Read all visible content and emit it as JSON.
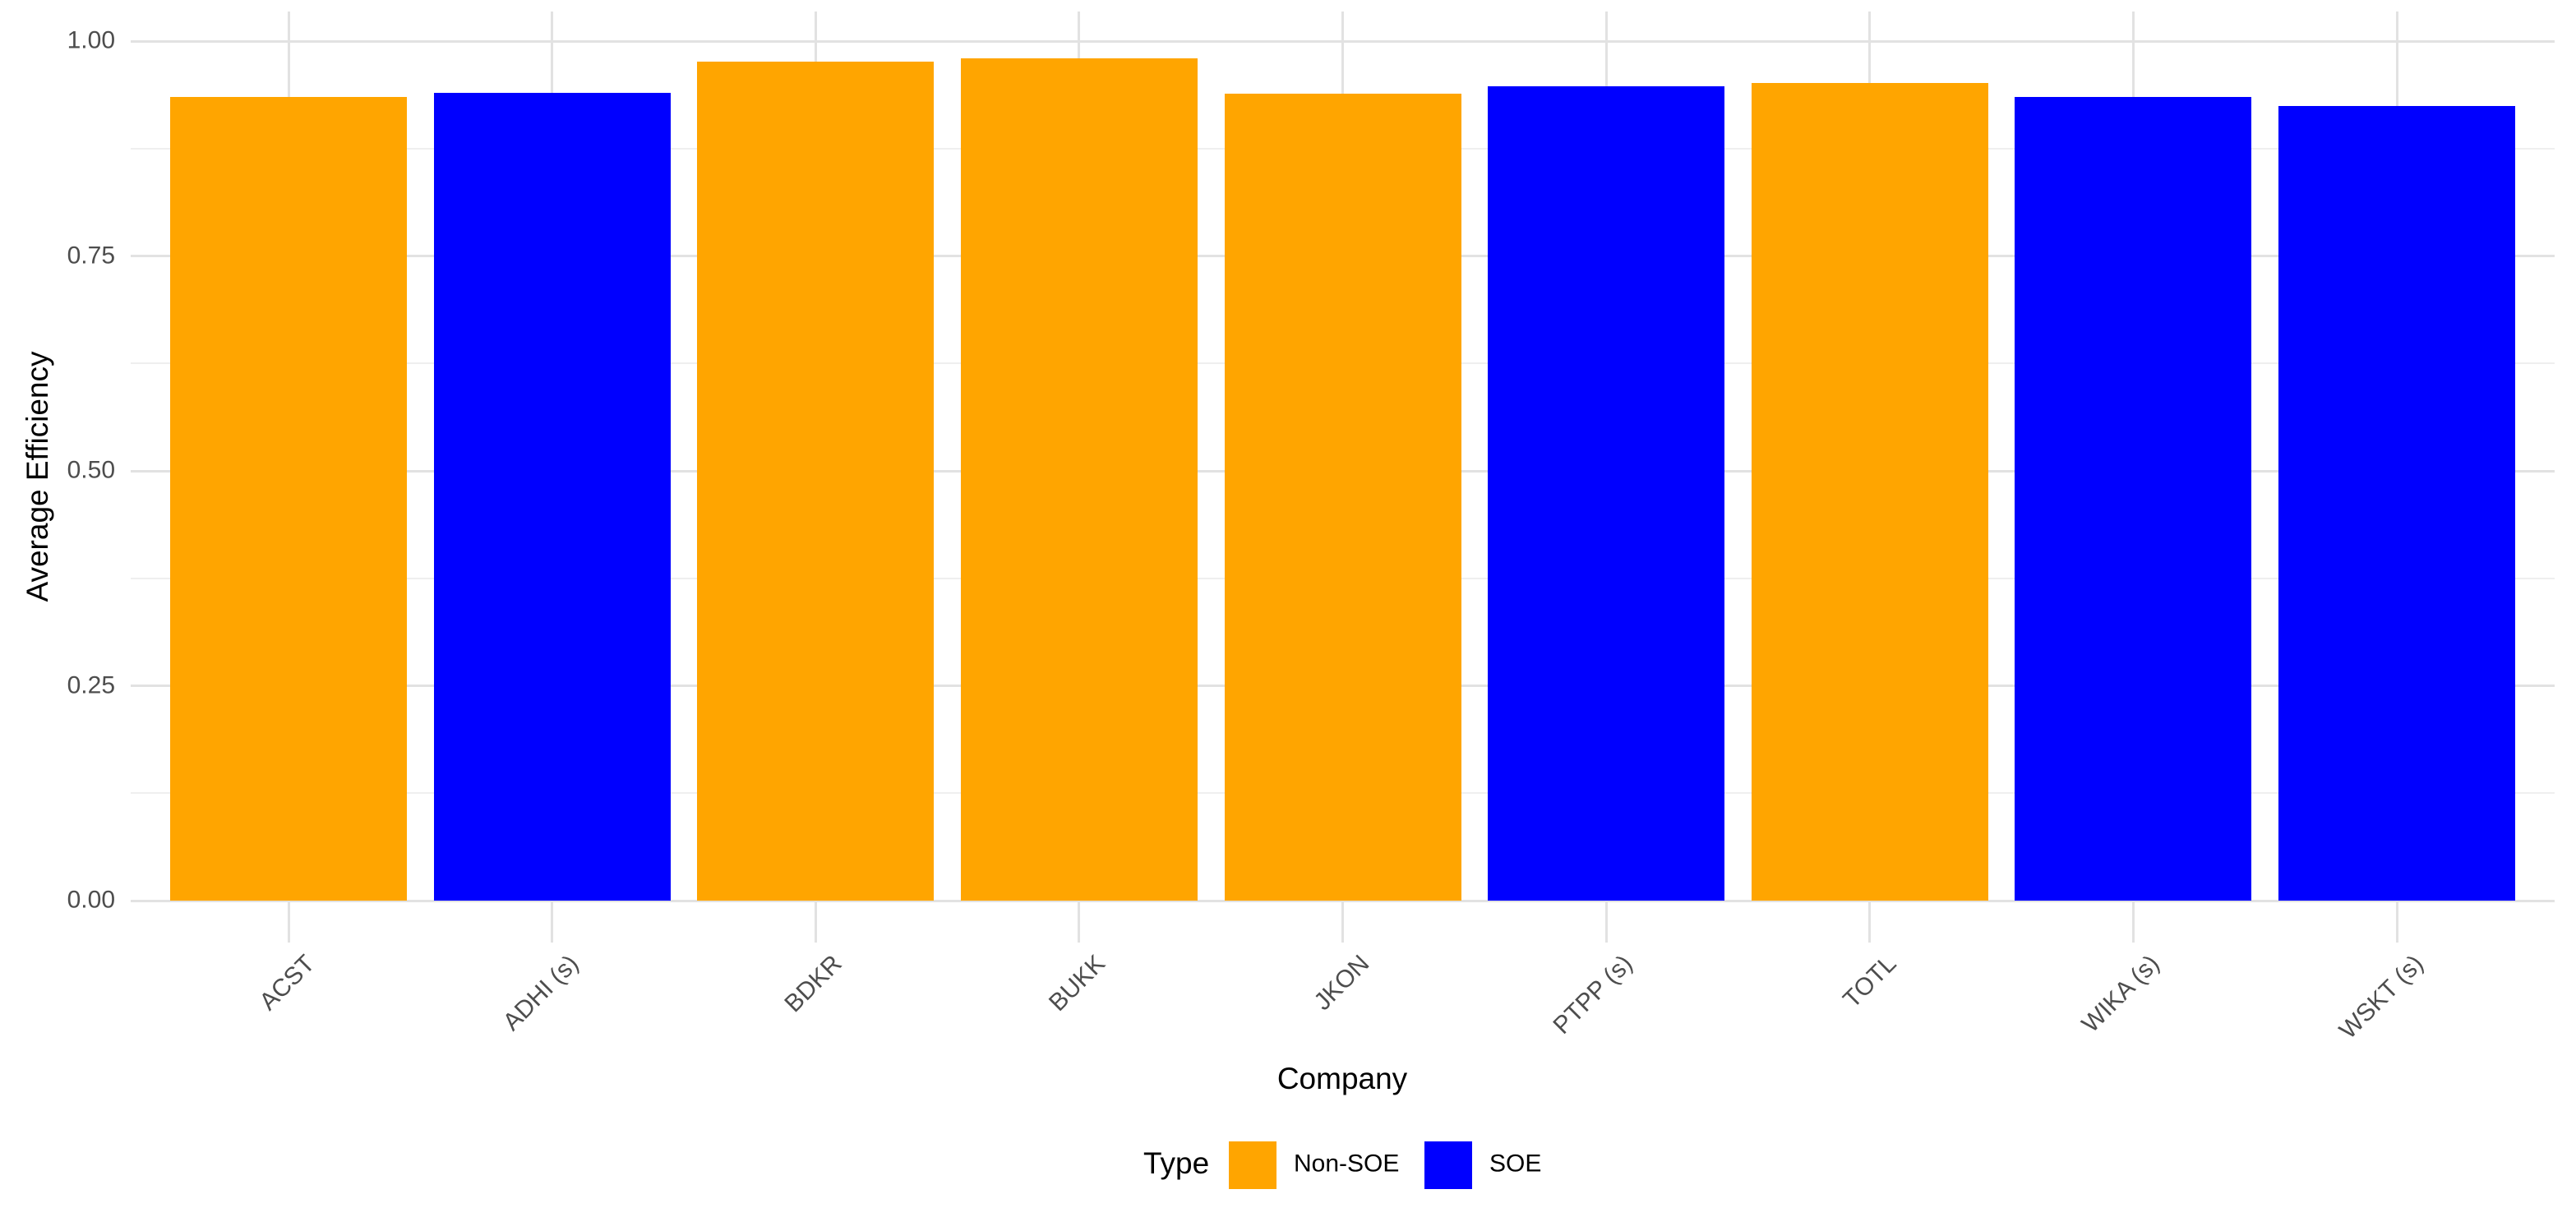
{
  "chart_data": {
    "type": "bar",
    "title": "",
    "xlabel": "Company",
    "ylabel": "Average Efficiency",
    "categories": [
      "ACST",
      "ADHI (s)",
      "BDKR",
      "BUKK",
      "JKON",
      "PTPP (s)",
      "TOTL",
      "WIKA (s)",
      "WSKT (s)"
    ],
    "values": [
      0.935,
      0.94,
      0.976,
      0.98,
      0.939,
      0.947,
      0.951,
      0.935,
      0.924
    ],
    "bars": [
      {
        "company": "ACST",
        "type": "Non-SOE",
        "value": 0.935
      },
      {
        "company": "ADHI (s)",
        "type": "SOE",
        "value": 0.94
      },
      {
        "company": "BDKR",
        "type": "Non-SOE",
        "value": 0.976
      },
      {
        "company": "BUKK",
        "type": "Non-SOE",
        "value": 0.98
      },
      {
        "company": "JKON",
        "type": "Non-SOE",
        "value": 0.939
      },
      {
        "company": "PTPP (s)",
        "type": "SOE",
        "value": 0.947
      },
      {
        "company": "TOTL",
        "type": "Non-SOE",
        "value": 0.951
      },
      {
        "company": "WIKA (s)",
        "type": "SOE",
        "value": 0.935
      },
      {
        "company": "WSKT (s)",
        "type": "SOE",
        "value": 0.924
      }
    ],
    "ylim": [
      0,
      1
    ],
    "yticks": [
      "0.00",
      "0.25",
      "0.50",
      "0.75",
      "1.00"
    ],
    "ytick_values": [
      0,
      0.25,
      0.5,
      0.75,
      1.0
    ],
    "minor_tick_values": [
      0.125,
      0.375,
      0.625,
      0.875
    ],
    "grid": "on",
    "legend": {
      "title": "Type",
      "position": "bottom",
      "items": [
        {
          "label": "Non-SOE",
          "color": "#FFA500"
        },
        {
          "label": "SOE",
          "color": "#0000FF"
        }
      ]
    }
  },
  "colors": {
    "non_soe": "#FFA500",
    "soe": "#0000FF",
    "grid_major": "#E2E2E2",
    "grid_minor": "#EFEFEF",
    "axis_text": "#4D4D4D",
    "title_text": "#000000",
    "background": "#FFFFFF"
  }
}
